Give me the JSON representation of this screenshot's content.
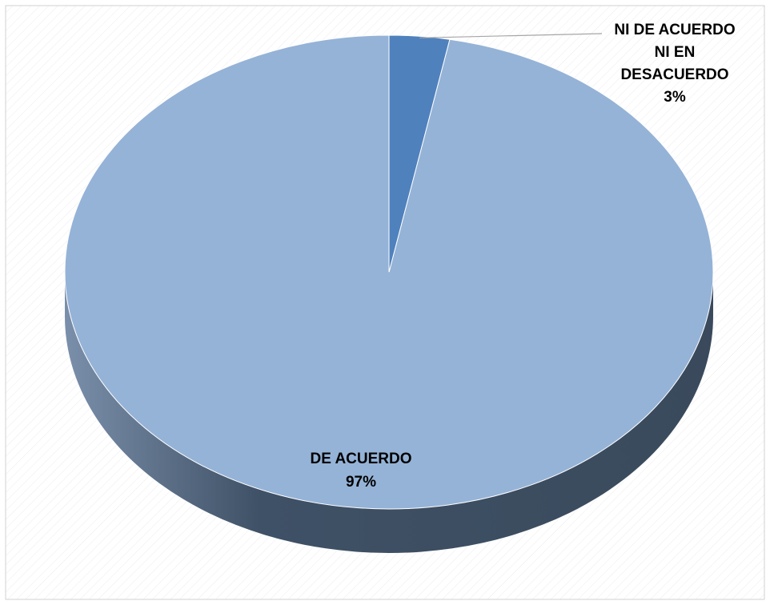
{
  "chart_data": {
    "type": "pie",
    "style": "3d",
    "labels": [
      "DE ACUERDO",
      "NI DE ACUERDO NI EN DESACUERDO"
    ],
    "values": [
      97,
      3
    ],
    "percent_labels": [
      "97%",
      "3%"
    ],
    "label_lines": [
      [
        "DE ACUERDO",
        "97%"
      ],
      [
        "NI DE ACUERDO",
        "NI EN",
        "DESACUERDO",
        "3%"
      ]
    ],
    "colors": [
      "#95B3D7",
      "#4F81BD"
    ],
    "legend": "none",
    "title": ""
  }
}
